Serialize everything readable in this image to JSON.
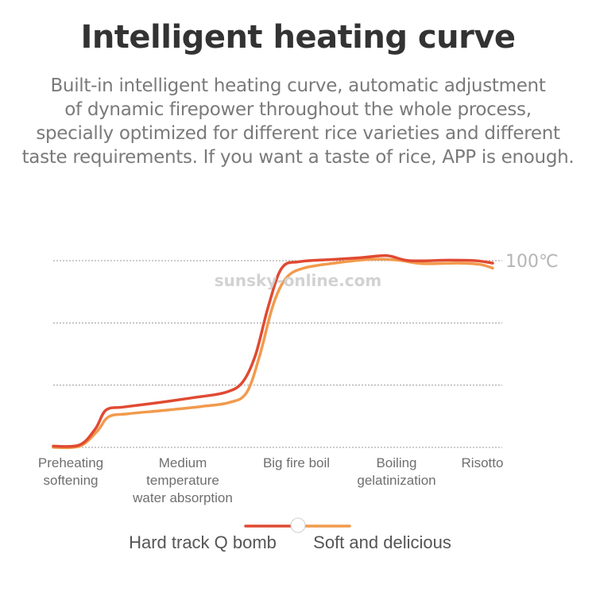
{
  "header": {
    "title": "Intelligent heating curve",
    "description_lines": [
      "Built-in intelligent heating curve, automatic adjustment",
      "of dynamic firepower throughout the whole process,",
      "specially optimized for different rice varieties and different",
      "taste requirements. If you want a taste of rice, APP is enough."
    ]
  },
  "watermark": "sunsky-online.com",
  "colors": {
    "hard": "#e04a32",
    "soft": "#f29a4c",
    "grid": "#9a9a9a",
    "text": "#6f6f6f"
  },
  "chart_data": {
    "type": "line",
    "categories": [
      [
        "Preheating",
        "softening"
      ],
      [
        "Medium",
        "temperature",
        "water absorption"
      ],
      [
        "Big fire boil"
      ],
      [
        "Boiling",
        "gelatinization"
      ],
      [
        "Risotto"
      ]
    ],
    "reference_line": {
      "label": "100℃",
      "value": 100
    },
    "ylim": [
      25,
      100
    ],
    "grid": true,
    "legend": {
      "position": "bottom-center"
    },
    "series": [
      {
        "name": "Hard track Q bomb",
        "color": "#e04a32",
        "points": [
          [
            0,
            25.5
          ],
          [
            0.3,
            26.0
          ],
          [
            0.48,
            32.5
          ],
          [
            0.6,
            40.0
          ],
          [
            0.8,
            41.2
          ],
          [
            1.2,
            43.0
          ],
          [
            1.6,
            45.0
          ],
          [
            1.95,
            47.0
          ],
          [
            2.15,
            51.0
          ],
          [
            2.3,
            62.0
          ],
          [
            2.45,
            82.0
          ],
          [
            2.6,
            97.0
          ],
          [
            2.8,
            99.6
          ],
          [
            3.2,
            100.5
          ],
          [
            3.5,
            101.2
          ],
          [
            3.8,
            102.0
          ],
          [
            4.05,
            100.0
          ],
          [
            4.5,
            100.2
          ],
          [
            4.8,
            100.0
          ],
          [
            5.0,
            99.0
          ]
        ]
      },
      {
        "name": "Soft and delicious",
        "color": "#f29a4c",
        "points": [
          [
            0,
            25.0
          ],
          [
            0.3,
            25.5
          ],
          [
            0.5,
            31.5
          ],
          [
            0.63,
            37.3
          ],
          [
            0.85,
            38.5
          ],
          [
            1.3,
            40.0
          ],
          [
            1.7,
            41.5
          ],
          [
            2.0,
            43.0
          ],
          [
            2.2,
            47.0
          ],
          [
            2.35,
            62.0
          ],
          [
            2.5,
            82.0
          ],
          [
            2.65,
            93.0
          ],
          [
            2.85,
            97.0
          ],
          [
            3.2,
            99.0
          ],
          [
            3.6,
            100.5
          ],
          [
            3.9,
            100.3
          ],
          [
            4.2,
            98.8
          ],
          [
            4.6,
            99.0
          ],
          [
            4.85,
            98.5
          ],
          [
            5.0,
            97.0
          ]
        ]
      }
    ]
  }
}
